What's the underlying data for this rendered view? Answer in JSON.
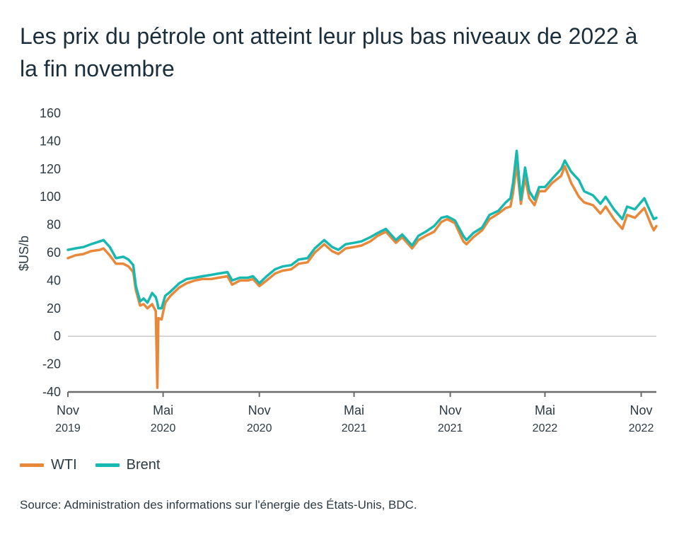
{
  "title": "Les prix du pétrole ont atteint leur plus bas niveaux de 2022 à la fin novembre",
  "source": "Source: Administration des informations sur l'énergie des États-Unis, BDC.",
  "colors": {
    "wti": "#e8883a",
    "brent": "#16b8b0",
    "axis": "#6b6b6b"
  },
  "chart_data": {
    "type": "line",
    "title": "Les prix du pétrole ont atteint leur plus bas niveaux de 2022 à la fin novembre",
    "xlabel": "",
    "ylabel": "$US/b",
    "ylim": [
      -40,
      160
    ],
    "yticks": [
      -40,
      -20,
      0,
      20,
      40,
      60,
      80,
      100,
      120,
      140,
      160
    ],
    "xlim": [
      "2019-11-01",
      "2022-11-30"
    ],
    "xticks": [
      {
        "date": "2019-11-01",
        "month": "Nov",
        "year": "2019"
      },
      {
        "date": "2020-05-01",
        "month": "Mai",
        "year": "2020"
      },
      {
        "date": "2020-11-01",
        "month": "Nov",
        "year": "2020"
      },
      {
        "date": "2021-05-01",
        "month": "Mai",
        "year": "2021"
      },
      {
        "date": "2021-11-01",
        "month": "Nov",
        "year": "2021"
      },
      {
        "date": "2022-05-01",
        "month": "Mai",
        "year": "2022"
      },
      {
        "date": "2022-11-01",
        "month": "Nov",
        "year": "2022"
      }
    ],
    "grid": false,
    "legend": "bottom-left",
    "series": [
      {
        "name": "WTI",
        "points": [
          [
            "2019-11-01",
            56
          ],
          [
            "2019-11-15",
            58
          ],
          [
            "2019-12-01",
            59
          ],
          [
            "2019-12-15",
            61
          ],
          [
            "2020-01-01",
            62
          ],
          [
            "2020-01-08",
            63
          ],
          [
            "2020-01-20",
            58
          ],
          [
            "2020-02-01",
            52
          ],
          [
            "2020-02-15",
            52
          ],
          [
            "2020-02-25",
            50
          ],
          [
            "2020-03-05",
            46
          ],
          [
            "2020-03-10",
            33
          ],
          [
            "2020-03-18",
            22
          ],
          [
            "2020-03-25",
            23
          ],
          [
            "2020-04-01",
            20
          ],
          [
            "2020-04-10",
            23
          ],
          [
            "2020-04-17",
            18
          ],
          [
            "2020-04-20",
            -37
          ],
          [
            "2020-04-22",
            13
          ],
          [
            "2020-04-28",
            12
          ],
          [
            "2020-05-05",
            24
          ],
          [
            "2020-05-15",
            29
          ],
          [
            "2020-06-01",
            35
          ],
          [
            "2020-06-15",
            38
          ],
          [
            "2020-07-01",
            40
          ],
          [
            "2020-07-15",
            41
          ],
          [
            "2020-08-01",
            41
          ],
          [
            "2020-08-15",
            42
          ],
          [
            "2020-09-01",
            43
          ],
          [
            "2020-09-10",
            37
          ],
          [
            "2020-09-25",
            40
          ],
          [
            "2020-10-10",
            40
          ],
          [
            "2020-10-20",
            41
          ],
          [
            "2020-11-01",
            36
          ],
          [
            "2020-11-15",
            40
          ],
          [
            "2020-12-01",
            45
          ],
          [
            "2020-12-15",
            47
          ],
          [
            "2021-01-01",
            48
          ],
          [
            "2021-01-15",
            52
          ],
          [
            "2021-02-01",
            53
          ],
          [
            "2021-02-15",
            60
          ],
          [
            "2021-03-05",
            66
          ],
          [
            "2021-03-20",
            61
          ],
          [
            "2021-04-01",
            59
          ],
          [
            "2021-04-15",
            63
          ],
          [
            "2021-05-01",
            64
          ],
          [
            "2021-05-15",
            65
          ],
          [
            "2021-06-01",
            68
          ],
          [
            "2021-06-15",
            72
          ],
          [
            "2021-07-01",
            75
          ],
          [
            "2021-07-20",
            67
          ],
          [
            "2021-08-01",
            71
          ],
          [
            "2021-08-20",
            63
          ],
          [
            "2021-09-01",
            69
          ],
          [
            "2021-09-15",
            72
          ],
          [
            "2021-10-01",
            75
          ],
          [
            "2021-10-15",
            82
          ],
          [
            "2021-10-26",
            84
          ],
          [
            "2021-11-10",
            81
          ],
          [
            "2021-11-26",
            68
          ],
          [
            "2021-12-02",
            66
          ],
          [
            "2021-12-15",
            71
          ],
          [
            "2022-01-01",
            76
          ],
          [
            "2022-01-15",
            84
          ],
          [
            "2022-02-01",
            88
          ],
          [
            "2022-02-15",
            92
          ],
          [
            "2022-02-24",
            93
          ],
          [
            "2022-03-01",
            103
          ],
          [
            "2022-03-08",
            123
          ],
          [
            "2022-03-16",
            95
          ],
          [
            "2022-03-24",
            114
          ],
          [
            "2022-04-01",
            99
          ],
          [
            "2022-04-11",
            94
          ],
          [
            "2022-04-20",
            104
          ],
          [
            "2022-05-01",
            104
          ],
          [
            "2022-05-15",
            110
          ],
          [
            "2022-06-01",
            115
          ],
          [
            "2022-06-08",
            122
          ],
          [
            "2022-06-20",
            110
          ],
          [
            "2022-07-05",
            100
          ],
          [
            "2022-07-15",
            96
          ],
          [
            "2022-08-01",
            94
          ],
          [
            "2022-08-15",
            88
          ],
          [
            "2022-08-25",
            93
          ],
          [
            "2022-09-10",
            84
          ],
          [
            "2022-09-26",
            77
          ],
          [
            "2022-10-05",
            87
          ],
          [
            "2022-10-20",
            85
          ],
          [
            "2022-11-07",
            92
          ],
          [
            "2022-11-20",
            80
          ],
          [
            "2022-11-25",
            76
          ],
          [
            "2022-11-30",
            79
          ]
        ]
      },
      {
        "name": "Brent",
        "points": [
          [
            "2019-11-01",
            62
          ],
          [
            "2019-11-15",
            63
          ],
          [
            "2019-12-01",
            64
          ],
          [
            "2019-12-15",
            66
          ],
          [
            "2020-01-01",
            68
          ],
          [
            "2020-01-08",
            69
          ],
          [
            "2020-01-20",
            64
          ],
          [
            "2020-02-01",
            56
          ],
          [
            "2020-02-15",
            57
          ],
          [
            "2020-02-25",
            55
          ],
          [
            "2020-03-05",
            51
          ],
          [
            "2020-03-10",
            36
          ],
          [
            "2020-03-18",
            25
          ],
          [
            "2020-03-25",
            27
          ],
          [
            "2020-04-01",
            24
          ],
          [
            "2020-04-10",
            31
          ],
          [
            "2020-04-17",
            28
          ],
          [
            "2020-04-20",
            24
          ],
          [
            "2020-04-22",
            20
          ],
          [
            "2020-04-28",
            20
          ],
          [
            "2020-05-05",
            29
          ],
          [
            "2020-05-15",
            32
          ],
          [
            "2020-06-01",
            38
          ],
          [
            "2020-06-15",
            41
          ],
          [
            "2020-07-01",
            42
          ],
          [
            "2020-07-15",
            43
          ],
          [
            "2020-08-01",
            44
          ],
          [
            "2020-08-15",
            45
          ],
          [
            "2020-09-01",
            46
          ],
          [
            "2020-09-10",
            40
          ],
          [
            "2020-09-25",
            42
          ],
          [
            "2020-10-10",
            42
          ],
          [
            "2020-10-20",
            43
          ],
          [
            "2020-11-01",
            38
          ],
          [
            "2020-11-15",
            43
          ],
          [
            "2020-12-01",
            48
          ],
          [
            "2020-12-15",
            50
          ],
          [
            "2021-01-01",
            51
          ],
          [
            "2021-01-15",
            55
          ],
          [
            "2021-02-01",
            56
          ],
          [
            "2021-02-15",
            63
          ],
          [
            "2021-03-05",
            69
          ],
          [
            "2021-03-20",
            64
          ],
          [
            "2021-04-01",
            62
          ],
          [
            "2021-04-15",
            66
          ],
          [
            "2021-05-01",
            67
          ],
          [
            "2021-05-15",
            68
          ],
          [
            "2021-06-01",
            71
          ],
          [
            "2021-06-15",
            74
          ],
          [
            "2021-07-01",
            77
          ],
          [
            "2021-07-20",
            69
          ],
          [
            "2021-08-01",
            73
          ],
          [
            "2021-08-20",
            65
          ],
          [
            "2021-09-01",
            72
          ],
          [
            "2021-09-15",
            75
          ],
          [
            "2021-10-01",
            79
          ],
          [
            "2021-10-15",
            85
          ],
          [
            "2021-10-26",
            86
          ],
          [
            "2021-11-10",
            83
          ],
          [
            "2021-11-26",
            72
          ],
          [
            "2021-12-02",
            69
          ],
          [
            "2021-12-15",
            74
          ],
          [
            "2022-01-01",
            78
          ],
          [
            "2022-01-15",
            87
          ],
          [
            "2022-02-01",
            90
          ],
          [
            "2022-02-15",
            96
          ],
          [
            "2022-02-24",
            99
          ],
          [
            "2022-03-01",
            110
          ],
          [
            "2022-03-08",
            133
          ],
          [
            "2022-03-16",
            98
          ],
          [
            "2022-03-24",
            121
          ],
          [
            "2022-04-01",
            104
          ],
          [
            "2022-04-11",
            98
          ],
          [
            "2022-04-20",
            107
          ],
          [
            "2022-05-01",
            107
          ],
          [
            "2022-05-15",
            113
          ],
          [
            "2022-06-01",
            120
          ],
          [
            "2022-06-08",
            126
          ],
          [
            "2022-06-20",
            118
          ],
          [
            "2022-07-05",
            112
          ],
          [
            "2022-07-15",
            104
          ],
          [
            "2022-08-01",
            101
          ],
          [
            "2022-08-15",
            95
          ],
          [
            "2022-08-25",
            100
          ],
          [
            "2022-09-10",
            91
          ],
          [
            "2022-09-26",
            84
          ],
          [
            "2022-10-05",
            93
          ],
          [
            "2022-10-20",
            91
          ],
          [
            "2022-11-07",
            99
          ],
          [
            "2022-11-20",
            88
          ],
          [
            "2022-11-25",
            84
          ],
          [
            "2022-11-30",
            85
          ]
        ]
      }
    ]
  }
}
